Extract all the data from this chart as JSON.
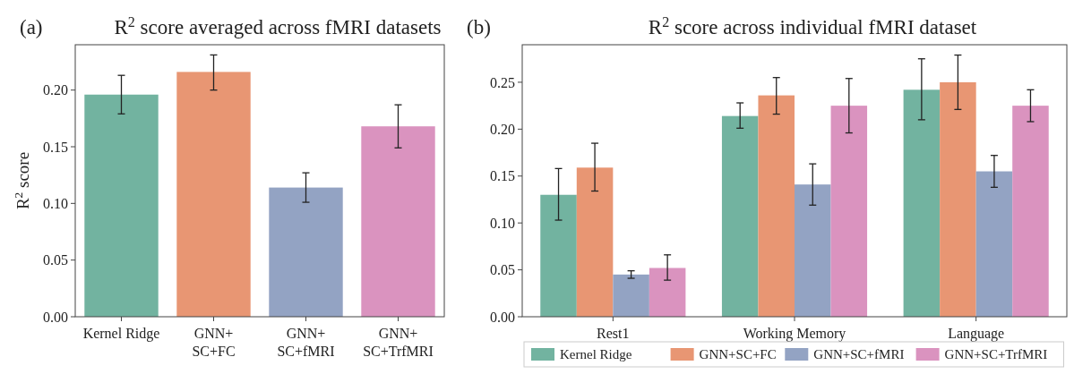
{
  "chart_data": [
    {
      "type": "bar",
      "title": "R$^{2}$ score averaged across fMRI datasets",
      "annotations": [
        "(a)"
      ],
      "ylabel": "R$^{2}$ score",
      "categories": [
        "Kernel Ridge",
        "GNN+\nSC+FC",
        "GNN+\nSC+fMRI",
        "GNN+\nSC+TrfMRI"
      ],
      "values": [
        0.196,
        0.216,
        0.114,
        0.168
      ],
      "colors": [
        "#72b3a0",
        "#e89673",
        "#93a3c3",
        "#da93bf"
      ],
      "errors": [
        [
          0.179,
          0.213
        ],
        [
          0.2,
          0.231
        ],
        [
          0.101,
          0.127
        ],
        [
          0.149,
          0.187
        ]
      ],
      "ylim": [
        0,
        0.24
      ],
      "yticks": [
        {
          "value": 0,
          "label": "0.00"
        },
        0.05,
        {
          "value": 0.1,
          "label": "0.10"
        },
        0.15,
        {
          "value": 0.2,
          "label": "0.20"
        }
      ],
      "grid": false,
      "legend": false
    },
    {
      "type": "bar",
      "title": "R$^{2}$ score across individual fMRI dataset",
      "annotations": [
        "(b)"
      ],
      "categories": [
        "Rest1",
        "Working Memory",
        "Language"
      ],
      "series": [
        {
          "name": "Kernel Ridge",
          "color": "#72b3a0",
          "values": [
            0.13,
            0.214,
            0.242
          ],
          "errors": [
            [
              0.103,
              0.158
            ],
            [
              0.201,
              0.228
            ],
            [
              0.21,
              0.275
            ]
          ]
        },
        {
          "name": "GNN+SC+FC",
          "color": "#e89673",
          "values": [
            0.159,
            0.236,
            0.25
          ],
          "errors": [
            [
              0.134,
              0.185
            ],
            [
              0.216,
              0.255
            ],
            [
              0.221,
              0.279
            ]
          ]
        },
        {
          "name": "GNN+SC+fMRI",
          "color": "#93a3c3",
          "values": [
            0.045,
            0.141,
            0.155
          ],
          "errors": [
            [
              0.041,
              0.049
            ],
            [
              0.119,
              0.163
            ],
            [
              0.138,
              0.172
            ]
          ]
        },
        {
          "name": "GNN+SC+TrfMRI",
          "color": "#da93bf",
          "values": [
            0.052,
            0.225,
            0.225
          ],
          "errors": [
            [
              0.039,
              0.066
            ],
            [
              0.196,
              0.254
            ],
            [
              0.208,
              0.242
            ]
          ]
        }
      ],
      "ylim": [
        0,
        0.29
      ],
      "yticks": [
        {
          "value": 0,
          "label": "0.00"
        },
        0.05,
        {
          "value": 0.1,
          "label": "0.10"
        },
        0.15,
        {
          "value": 0.2,
          "label": "0.20"
        },
        0.25
      ],
      "grid": false,
      "legend": "bottom"
    }
  ]
}
